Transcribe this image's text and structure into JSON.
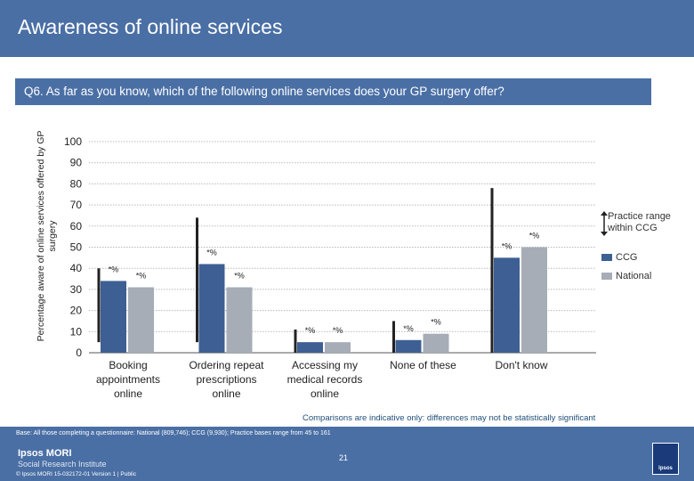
{
  "header": {
    "title": "Awareness of online services"
  },
  "question": "Q6. As far as you know, which of the following online services does your GP surgery offer?",
  "chart_data": {
    "type": "bar",
    "ylabel": "Percentage aware of online services offered by GP surgery",
    "ylim": [
      0,
      100
    ],
    "yticks": [
      "0",
      "10",
      "20",
      "30",
      "40",
      "50",
      "60",
      "70",
      "80",
      "90",
      "100"
    ],
    "grid": true,
    "categories": [
      [
        "Booking",
        "appointments",
        "online"
      ],
      [
        "Ordering repeat",
        "prescriptions",
        "online"
      ],
      [
        "Accessing my",
        "medical records",
        "online"
      ],
      [
        "None of these"
      ],
      [
        "Don't know"
      ]
    ],
    "series": [
      {
        "name": "CCG",
        "color": "#3d5f93",
        "values": [
          34,
          42,
          5,
          6,
          45
        ],
        "labels": [
          "*%",
          "*%",
          "*%",
          "*%",
          "*%"
        ]
      },
      {
        "name": "National",
        "color": "#a6adb7",
        "values": [
          31,
          31,
          5,
          9,
          50
        ],
        "labels": [
          "*%",
          "*%",
          "*%",
          "*%",
          "*%"
        ]
      }
    ],
    "ranges": [
      {
        "low": 5,
        "high": 40
      },
      {
        "low": 5,
        "high": 64
      },
      {
        "low": 0,
        "high": 11
      },
      {
        "low": 0,
        "high": 15
      },
      {
        "low": 0,
        "high": 78
      }
    ],
    "range_legend": "Practice range within CCG",
    "legend_position": "right",
    "note": "Comparisons are indicative only: differences may not be statistically significant"
  },
  "footer": {
    "base": "Base: All those completing a questionnaire: National (809,746); CCG (9,930); Practice bases range from 45 to 161",
    "brand_line1": "Ipsos MORI",
    "brand_line2": "Social Research Institute",
    "copyright": "© Ipsos MORI     15-032172-01 Version 1 | Public",
    "page": "21",
    "logo_text": "Ipsos"
  }
}
